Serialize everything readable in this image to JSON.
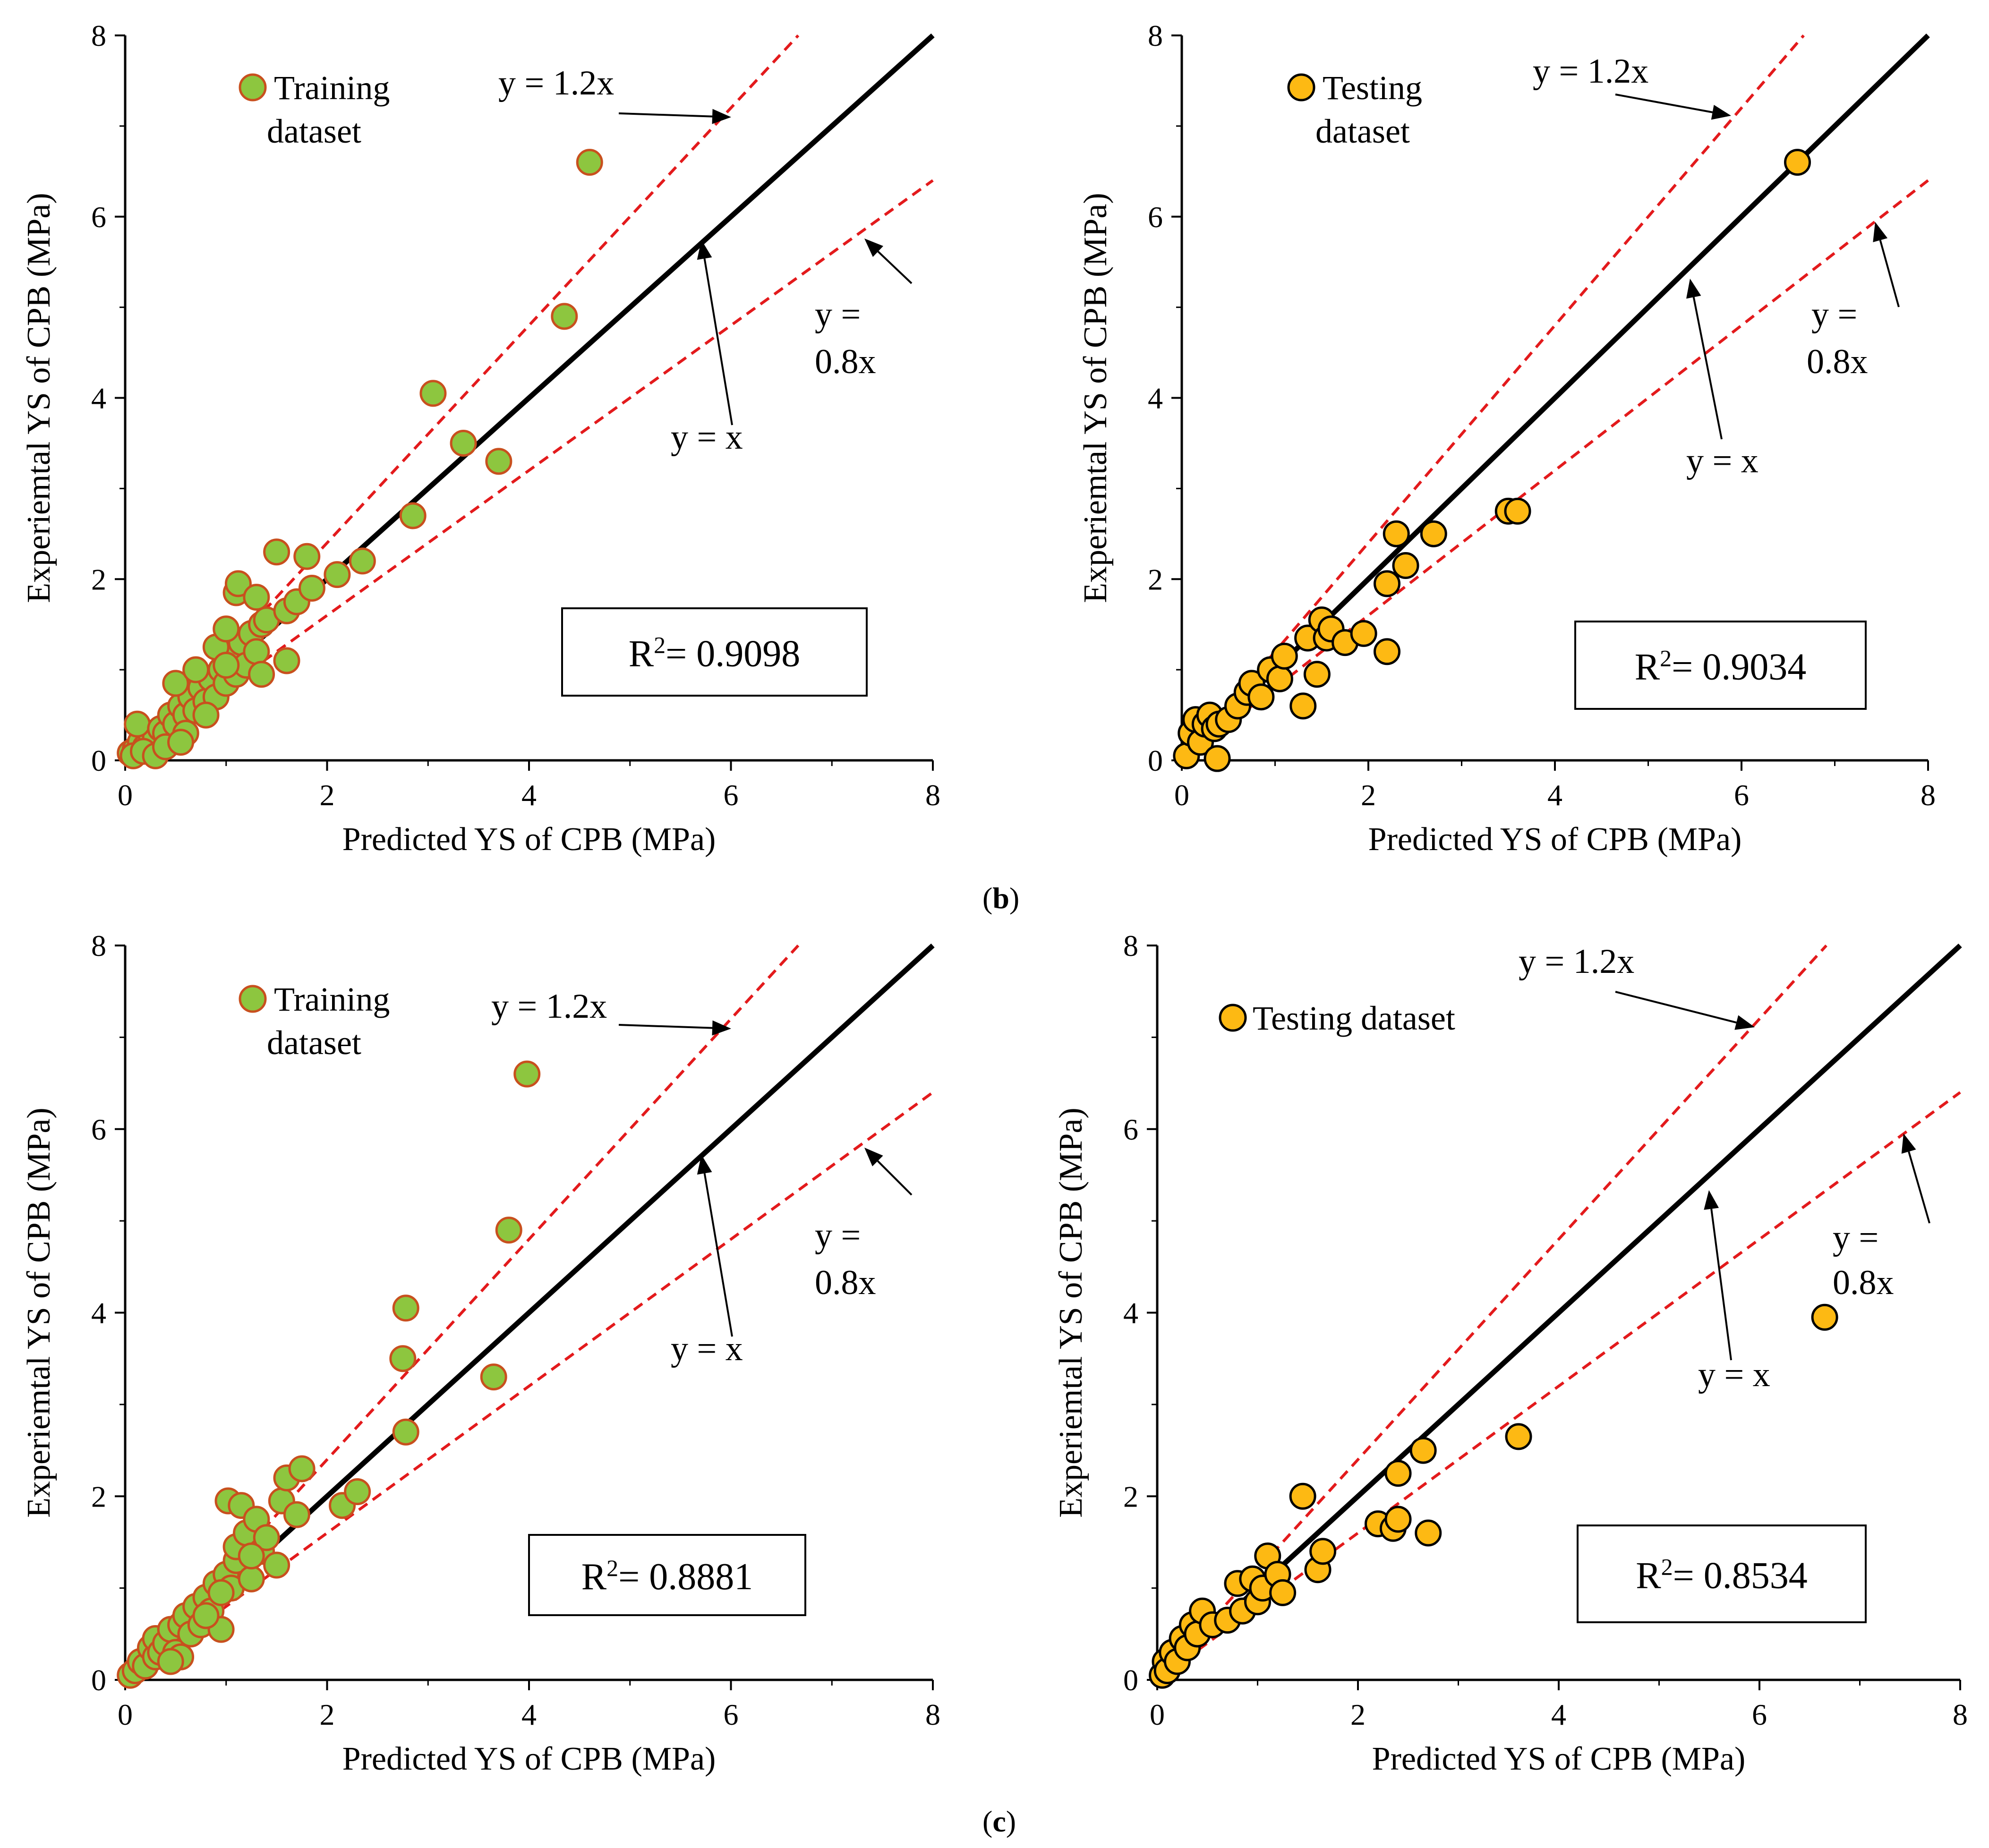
{
  "captions": {
    "b_open": "(",
    "b_letter": "b",
    "b_close": ")",
    "c_open": "(",
    "c_letter": "c",
    "c_close": ")"
  },
  "colors": {
    "training_fill": "#8DC63F",
    "training_edge": "#C8501E",
    "testing_fill": "#FDB913",
    "testing_edge": "#000000",
    "guide_line": "#E31A1C",
    "identity_line": "#000000"
  },
  "chart_data": [
    {
      "id": "b-train",
      "type": "scatter",
      "xlabel": "Predicted YS of CPB (MPa)",
      "ylabel": "Experiemtal YS of CPB (MPa)",
      "xlim": [
        0,
        8
      ],
      "ylim": [
        0,
        8
      ],
      "xticks": [
        "0",
        "2",
        "4",
        "6",
        "8"
      ],
      "yticks": [
        "0",
        "2",
        "4",
        "6",
        "8"
      ],
      "legend": [
        "Training",
        "dataset"
      ],
      "marker": "training",
      "r2_label": "R",
      "r2_sup": "2",
      "r2_value": "= 0.9098",
      "line_labels": {
        "upper": "y = 1.2x",
        "identity": "y = x",
        "lower_1": "y =",
        "lower_2": "0.8x"
      },
      "points": [
        [
          0.05,
          0.08
        ],
        [
          0.1,
          0.12
        ],
        [
          0.15,
          0.2
        ],
        [
          0.08,
          0.05
        ],
        [
          0.2,
          0.15
        ],
        [
          0.25,
          0.3
        ],
        [
          0.3,
          0.25
        ],
        [
          0.12,
          0.4
        ],
        [
          0.18,
          0.1
        ],
        [
          0.35,
          0.35
        ],
        [
          0.4,
          0.3
        ],
        [
          0.45,
          0.5
        ],
        [
          0.5,
          0.4
        ],
        [
          0.55,
          0.6
        ],
        [
          0.6,
          0.5
        ],
        [
          0.65,
          0.7
        ],
        [
          0.7,
          0.55
        ],
        [
          0.75,
          0.8
        ],
        [
          0.8,
          0.65
        ],
        [
          0.85,
          0.9
        ],
        [
          0.9,
          0.7
        ],
        [
          0.95,
          1.0
        ],
        [
          1.0,
          0.85
        ],
        [
          1.05,
          1.15
        ],
        [
          1.1,
          0.95
        ],
        [
          1.15,
          1.3
        ],
        [
          1.2,
          1.05
        ],
        [
          1.25,
          1.4
        ],
        [
          1.3,
          1.2
        ],
        [
          1.35,
          1.5
        ],
        [
          0.5,
          0.85
        ],
        [
          0.6,
          0.3
        ],
        [
          0.7,
          1.0
        ],
        [
          0.9,
          1.25
        ],
        [
          1.0,
          1.45
        ],
        [
          1.1,
          1.85
        ],
        [
          1.12,
          1.95
        ],
        [
          1.3,
          1.8
        ],
        [
          1.4,
          1.55
        ],
        [
          1.5,
          2.3
        ],
        [
          1.6,
          1.65
        ],
        [
          1.6,
          1.1
        ],
        [
          1.7,
          1.75
        ],
        [
          1.8,
          2.25
        ],
        [
          1.85,
          1.9
        ],
        [
          2.1,
          2.05
        ],
        [
          2.35,
          2.2
        ],
        [
          2.85,
          2.7
        ],
        [
          3.05,
          4.05
        ],
        [
          3.35,
          3.5
        ],
        [
          3.7,
          3.3
        ],
        [
          4.35,
          4.9
        ],
        [
          4.6,
          6.6
        ],
        [
          0.3,
          0.05
        ],
        [
          0.4,
          0.15
        ],
        [
          0.55,
          0.2
        ],
        [
          1.35,
          0.95
        ],
        [
          1.0,
          1.05
        ],
        [
          0.8,
          0.5
        ]
      ]
    },
    {
      "id": "b-test",
      "type": "scatter",
      "xlabel": "Predicted YS of CPB (MPa)",
      "ylabel": "Experiemtal YS of CPB (MPa)",
      "xlim": [
        0,
        8
      ],
      "ylim": [
        0,
        8
      ],
      "xticks": [
        "0",
        "2",
        "4",
        "6",
        "8"
      ],
      "yticks": [
        "0",
        "2",
        "4",
        "6",
        "8"
      ],
      "legend": [
        "Testing",
        "dataset"
      ],
      "marker": "testing",
      "r2_label": "R",
      "r2_sup": "2",
      "r2_value": "= 0.9034",
      "line_labels": {
        "upper": "y = 1.2x",
        "identity": "y = x",
        "lower_1": "y =",
        "lower_2": "0.8x"
      },
      "points": [
        [
          0.05,
          0.05
        ],
        [
          0.1,
          0.3
        ],
        [
          0.15,
          0.45
        ],
        [
          0.2,
          0.2
        ],
        [
          0.25,
          0.4
        ],
        [
          0.3,
          0.5
        ],
        [
          0.35,
          0.35
        ],
        [
          0.38,
          0.02
        ],
        [
          0.4,
          0.4
        ],
        [
          0.5,
          0.45
        ],
        [
          0.6,
          0.6
        ],
        [
          0.7,
          0.75
        ],
        [
          0.75,
          0.85
        ],
        [
          0.85,
          0.7
        ],
        [
          0.95,
          1.0
        ],
        [
          1.05,
          0.9
        ],
        [
          1.1,
          1.15
        ],
        [
          1.3,
          0.6
        ],
        [
          1.35,
          1.35
        ],
        [
          1.45,
          0.95
        ],
        [
          1.5,
          1.55
        ],
        [
          1.55,
          1.35
        ],
        [
          1.6,
          1.45
        ],
        [
          1.75,
          1.3
        ],
        [
          1.95,
          1.4
        ],
        [
          2.2,
          1.2
        ],
        [
          2.2,
          1.95
        ],
        [
          2.3,
          2.5
        ],
        [
          2.4,
          2.15
        ],
        [
          2.7,
          2.5
        ],
        [
          3.5,
          2.75
        ],
        [
          3.6,
          2.75
        ],
        [
          6.6,
          6.6
        ]
      ]
    },
    {
      "id": "c-train",
      "type": "scatter",
      "xlabel": "Predicted YS of CPB (MPa)",
      "ylabel": "Experiemtal YS of CPB (MPa)",
      "xlim": [
        0,
        8
      ],
      "ylim": [
        0,
        8
      ],
      "xticks": [
        "0",
        "2",
        "4",
        "6",
        "8"
      ],
      "yticks": [
        "0",
        "2",
        "4",
        "6",
        "8"
      ],
      "legend": [
        "Training",
        "dataset"
      ],
      "marker": "training",
      "r2_label": "R",
      "r2_sup": "2",
      "r2_value": "= 0.8881",
      "line_labels": {
        "upper": "y = 1.2x",
        "identity": "y = x",
        "lower_1": "y =",
        "lower_2": "0.8x"
      },
      "points": [
        [
          0.05,
          0.05
        ],
        [
          0.1,
          0.1
        ],
        [
          0.15,
          0.2
        ],
        [
          0.2,
          0.15
        ],
        [
          0.25,
          0.35
        ],
        [
          0.3,
          0.25
        ],
        [
          0.3,
          0.45
        ],
        [
          0.35,
          0.3
        ],
        [
          0.4,
          0.4
        ],
        [
          0.45,
          0.55
        ],
        [
          0.5,
          0.3
        ],
        [
          0.55,
          0.6
        ],
        [
          0.6,
          0.7
        ],
        [
          0.65,
          0.5
        ],
        [
          0.7,
          0.8
        ],
        [
          0.75,
          0.6
        ],
        [
          0.8,
          0.9
        ],
        [
          0.85,
          0.75
        ],
        [
          0.9,
          1.05
        ],
        [
          0.95,
          0.55
        ],
        [
          1.0,
          1.15
        ],
        [
          1.02,
          1.95
        ],
        [
          1.05,
          1.0
        ],
        [
          1.1,
          1.3
        ],
        [
          1.1,
          1.45
        ],
        [
          1.15,
          1.9
        ],
        [
          1.2,
          1.6
        ],
        [
          1.25,
          1.1
        ],
        [
          1.3,
          1.75
        ],
        [
          1.35,
          1.4
        ],
        [
          1.4,
          1.55
        ],
        [
          1.5,
          1.25
        ],
        [
          1.55,
          1.95
        ],
        [
          1.6,
          2.2
        ],
        [
          1.7,
          1.8
        ],
        [
          1.75,
          2.3
        ],
        [
          2.15,
          1.9
        ],
        [
          2.3,
          2.05
        ],
        [
          2.75,
          3.5
        ],
        [
          2.78,
          4.05
        ],
        [
          2.78,
          2.7
        ],
        [
          3.65,
          3.3
        ],
        [
          3.8,
          4.9
        ],
        [
          3.98,
          6.6
        ],
        [
          0.55,
          0.25
        ],
        [
          0.45,
          0.2
        ],
        [
          0.8,
          0.7
        ],
        [
          0.95,
          0.95
        ],
        [
          1.25,
          1.35
        ]
      ]
    },
    {
      "id": "c-test",
      "type": "scatter",
      "xlabel": "Predicted YS of CPB (MPa)",
      "ylabel": "Experiemtal YS of CPB (MPa)",
      "xlim": [
        0,
        8
      ],
      "ylim": [
        0,
        8
      ],
      "xticks": [
        "0",
        "2",
        "4",
        "6",
        "8"
      ],
      "yticks": [
        "0",
        "2",
        "4",
        "6",
        "8"
      ],
      "legend": [
        "Testing dataset"
      ],
      "marker": "testing",
      "r2_label": "R",
      "r2_sup": "2",
      "r2_value": "= 0.8534",
      "line_labels": {
        "upper": "y = 1.2x",
        "identity": "y = x",
        "lower_1": "y =",
        "lower_2": "0.8x"
      },
      "points": [
        [
          0.05,
          0.05
        ],
        [
          0.08,
          0.2
        ],
        [
          0.1,
          0.1
        ],
        [
          0.15,
          0.3
        ],
        [
          0.2,
          0.2
        ],
        [
          0.25,
          0.45
        ],
        [
          0.3,
          0.35
        ],
        [
          0.35,
          0.6
        ],
        [
          0.4,
          0.5
        ],
        [
          0.45,
          0.75
        ],
        [
          0.55,
          0.6
        ],
        [
          0.7,
          0.65
        ],
        [
          0.8,
          1.05
        ],
        [
          0.85,
          0.75
        ],
        [
          0.95,
          1.1
        ],
        [
          1.0,
          0.85
        ],
        [
          1.05,
          1.0
        ],
        [
          1.1,
          1.35
        ],
        [
          1.2,
          1.15
        ],
        [
          1.25,
          0.95
        ],
        [
          1.45,
          2.0
        ],
        [
          1.6,
          1.2
        ],
        [
          1.65,
          1.4
        ],
        [
          2.2,
          1.7
        ],
        [
          2.35,
          1.65
        ],
        [
          2.4,
          1.75
        ],
        [
          2.4,
          2.25
        ],
        [
          2.65,
          2.5
        ],
        [
          2.7,
          1.6
        ],
        [
          3.6,
          2.65
        ],
        [
          6.65,
          3.95
        ]
      ]
    }
  ]
}
